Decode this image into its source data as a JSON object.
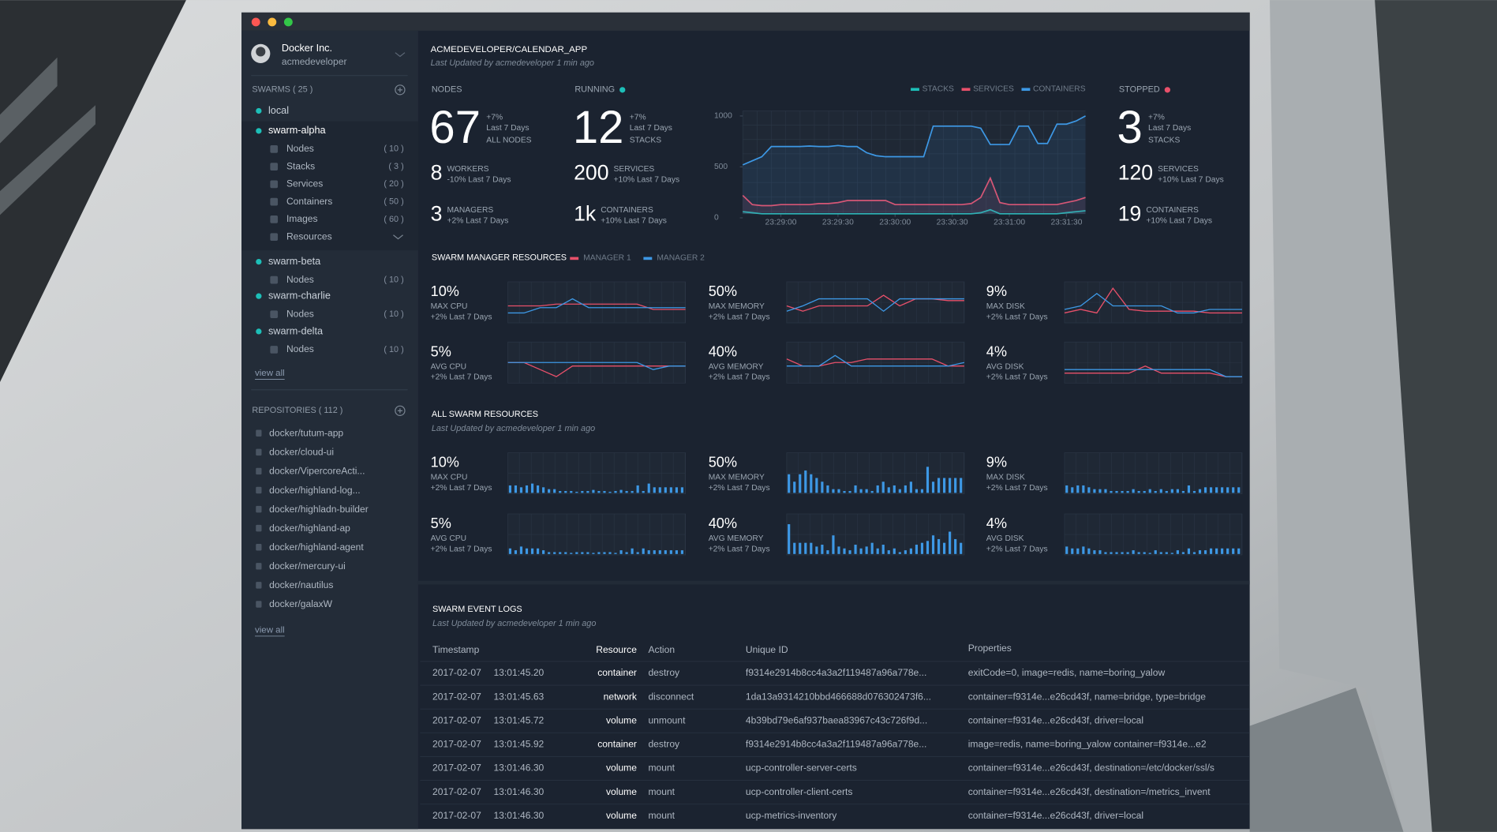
{
  "sidebar": {
    "org": "Docker Inc.",
    "user": "acmedeveloper",
    "swarms_title": "SWARMS ( 25 )",
    "swarms": [
      {
        "name": "local"
      },
      {
        "name": "swarm-alpha",
        "items": [
          {
            "label": "Nodes",
            "count": "( 10 )"
          },
          {
            "label": "Stacks",
            "count": "( 3 )"
          },
          {
            "label": "Services",
            "count": "( 20 )"
          },
          {
            "label": "Containers",
            "count": "( 50 )"
          },
          {
            "label": "Images",
            "count": "( 60 )"
          },
          {
            "label": "Resources"
          }
        ]
      },
      {
        "name": "swarm-beta",
        "items": [
          {
            "label": "Nodes",
            "count": "( 10 )"
          }
        ]
      },
      {
        "name": "swarm-charlie",
        "items": [
          {
            "label": "Nodes",
            "count": "( 10 )"
          }
        ]
      },
      {
        "name": "swarm-delta",
        "items": [
          {
            "label": "Nodes",
            "count": "( 10 )"
          }
        ]
      }
    ],
    "swarms_link": "view all",
    "repos_title": "REPOSITORIES  ( 112 )",
    "repos": [
      "docker/tutum-app",
      "docker/cloud-ui",
      "docker/VipercoreActi...",
      "docker/highland-log...",
      "docker/highladn-builder",
      "docker/highland-ap",
      "docker/highland-agent",
      "docker/mercury-ui",
      "docker/nautilus",
      "docker/galaxW"
    ],
    "repos_link": "view all"
  },
  "header": {
    "title": "ACMEDEVELOPER/CALENDAR_APP",
    "updated": "Last Updated by acmedeveloper 1 min ago"
  },
  "stats": [
    {
      "label": "NODES",
      "value": "67",
      "change": "+7%",
      "period": "Last 7 Days",
      "unit": "ALL NODES",
      "rows": [
        {
          "value": "8",
          "unit": "WORKERS",
          "change": "-10% Last 7 Days"
        },
        {
          "value": "3",
          "unit": "MANAGERS",
          "change": "+2% Last 7 Days"
        }
      ]
    },
    {
      "label": "RUNNING",
      "status_color": "#1dbfb8",
      "value": "12",
      "change": "+7%",
      "period": "Last 7 Days",
      "unit": "STACKS",
      "rows": [
        {
          "value": "200",
          "unit": "SERVICES",
          "change": "+10% Last 7 Days"
        },
        {
          "value": "1k",
          "unit": "CONTAINERS",
          "change": "+10% Last 7 Days"
        }
      ]
    },
    {
      "label": "STOPPED",
      "status_color": "#e8506a",
      "value": "3",
      "change": "+7%",
      "period": "Last 7 Days",
      "unit": "STACKS",
      "rows": [
        {
          "value": "120",
          "unit": "SERVICES",
          "change": "+10% Last 7 Days"
        },
        {
          "value": "19",
          "unit": "CONTAINERS",
          "change": "+10% Last 7 Days"
        }
      ]
    }
  ],
  "chart_data": {
    "type": "line",
    "xlim": [
      0,
      36
    ],
    "xticks": [
      {
        "value": 4,
        "label": "23:29:00"
      },
      {
        "value": 10,
        "label": "23:29:30"
      },
      {
        "value": 16,
        "label": "23:30:00"
      },
      {
        "value": 22,
        "label": "23:30:30"
      },
      {
        "value": 28,
        "label": "23:31:00"
      },
      {
        "value": 34,
        "label": "23:31:30"
      }
    ],
    "ylim": [
      0,
      1050
    ],
    "yticks": [
      0,
      500,
      1000
    ],
    "grid": true,
    "legend": "top-right",
    "series": [
      {
        "name": "STACKS",
        "color": "#1dbfb8",
        "values": [
          60,
          50,
          40,
          40,
          40,
          40,
          40,
          40,
          40,
          40,
          40,
          40,
          40,
          40,
          40,
          40,
          40,
          40,
          40,
          40,
          40,
          40,
          40,
          40,
          40,
          50,
          80,
          40,
          40,
          40,
          40,
          40,
          40,
          40,
          50,
          60,
          70
        ]
      },
      {
        "name": "SERVICES",
        "color": "#e8506a",
        "values": [
          220,
          130,
          120,
          120,
          130,
          130,
          130,
          130,
          140,
          140,
          150,
          170,
          170,
          170,
          170,
          170,
          130,
          130,
          130,
          130,
          130,
          130,
          130,
          130,
          140,
          200,
          390,
          150,
          130,
          130,
          130,
          130,
          130,
          130,
          150,
          170,
          200
        ]
      },
      {
        "name": "CONTAINERS",
        "color": "#3d98e5",
        "values": [
          520,
          560,
          600,
          700,
          700,
          700,
          700,
          705,
          700,
          700,
          710,
          700,
          700,
          640,
          610,
          600,
          600,
          600,
          600,
          600,
          900,
          900,
          900,
          900,
          900,
          880,
          720,
          720,
          720,
          900,
          900,
          730,
          730,
          920,
          920,
          950,
          1000
        ]
      }
    ]
  },
  "manager_resources": {
    "title": "SWARM MANAGER RESOURCES",
    "type": "line",
    "ylim": [
      0,
      10
    ],
    "legend": [
      {
        "name": "MANAGER 1",
        "color": "#e8506a"
      },
      {
        "name": "MANAGER 2",
        "color": "#3d98e5"
      }
    ],
    "blocks": [
      {
        "value": "10%",
        "label": "MAX CPU",
        "change": "+2% Last 7 Days",
        "series": [
          [
            4,
            4,
            4,
            4.5,
            4.5,
            4.5,
            4.5,
            4.5,
            4.5,
            3,
            3,
            3
          ],
          [
            2,
            2,
            3.5,
            3.5,
            6,
            3.5,
            3.5,
            3.5,
            3.5,
            3.5,
            3.5,
            3.5
          ]
        ]
      },
      {
        "value": "50%",
        "label": "MAX MEMORY",
        "change": "+2% Last 7 Days",
        "series": [
          [
            4,
            2.5,
            4,
            4,
            4,
            4,
            7,
            4,
            6,
            6,
            5.5,
            5.5
          ],
          [
            2.5,
            4,
            6,
            6,
            6,
            6,
            2.5,
            6,
            6,
            6,
            6,
            6
          ]
        ]
      },
      {
        "value": "9%",
        "label": "MAX DISK",
        "change": "+2% Last 7 Days",
        "series": [
          [
            2,
            3,
            2,
            9,
            3,
            2.5,
            2.5,
            2.5,
            2.5,
            2,
            2,
            2
          ],
          [
            3,
            4,
            7.5,
            4,
            4,
            4,
            4,
            2,
            2,
            3,
            3,
            3
          ]
        ]
      },
      {
        "value": "5%",
        "label": "AVG CPU",
        "change": "+2% Last 7 Days",
        "series": [
          [
            5,
            5,
            3,
            1,
            4,
            4,
            4,
            4,
            4,
            4,
            4,
            4
          ],
          [
            5,
            5,
            5,
            5,
            5,
            5,
            5,
            5,
            5,
            3,
            4,
            4
          ]
        ]
      },
      {
        "value": "40%",
        "label": "AVG MEMORY",
        "change": "+2% Last 7 Days",
        "series": [
          [
            6,
            4,
            4,
            5,
            5,
            6,
            6,
            6,
            6,
            6,
            4,
            4
          ],
          [
            4,
            4,
            4,
            7,
            4,
            4,
            4,
            4,
            4,
            4,
            4,
            5
          ]
        ]
      },
      {
        "value": "4%",
        "label": "AVG DISK",
        "change": "+2% Last 7 Days",
        "series": [
          [
            2,
            2,
            2,
            2,
            2,
            4,
            2,
            2,
            2,
            2,
            1,
            1
          ],
          [
            3,
            3,
            3,
            3,
            3,
            3,
            3,
            3,
            3,
            3,
            1,
            1
          ]
        ]
      }
    ]
  },
  "swarm_resources": {
    "title": "ALL SWARM RESOURCES",
    "updated": "Last Updated by acmedeveloper 1 min ago",
    "type": "bar",
    "color": "#3d98e5",
    "ylim": [
      0,
      10
    ],
    "blocks": [
      {
        "value": "10%",
        "label": "MAX CPU",
        "change": "+2% Last 7 Days",
        "values": [
          2,
          2,
          1.5,
          2,
          2.5,
          2,
          1.5,
          1,
          1,
          0.5,
          0.5,
          0.5,
          0.3,
          0.5,
          0.5,
          0.8,
          0.5,
          0.5,
          0.3,
          0.5,
          0.8,
          0.5,
          0.5,
          2,
          0.5,
          2.5,
          1.5,
          1.5,
          1.5,
          1.5,
          1.5,
          1.5
        ]
      },
      {
        "value": "50%",
        "label": "MAX MEMORY",
        "change": "+2% Last 7 Days",
        "values": [
          5,
          3,
          5,
          6,
          5,
          4,
          3,
          2,
          1,
          1,
          0.5,
          0.5,
          2,
          1,
          1,
          0.5,
          2,
          3,
          1.5,
          2,
          1,
          2,
          3,
          1,
          1,
          7,
          3,
          4,
          4,
          4,
          4,
          4
        ]
      },
      {
        "value": "9%",
        "label": "MAX DISK",
        "change": "+2% Last 7 Days",
        "values": [
          2,
          1.5,
          2,
          2,
          1.5,
          1,
          1,
          1,
          0.5,
          0.5,
          0.5,
          0.5,
          1,
          0.5,
          0.5,
          1,
          0.5,
          1,
          0.5,
          1,
          1,
          0.5,
          2,
          0.5,
          1,
          1.5,
          1.5,
          1.5,
          1.5,
          1.5,
          1.5,
          1.5
        ]
      },
      {
        "value": "5%",
        "label": "AVG CPU",
        "change": "+2% Last 7 Days",
        "values": [
          1.5,
          1,
          2,
          1.5,
          1.5,
          1.5,
          1,
          0.5,
          0.5,
          0.5,
          0.5,
          0.3,
          0.5,
          0.5,
          0.5,
          0.3,
          0.5,
          0.5,
          0.5,
          0.3,
          1,
          0.5,
          1.5,
          0.5,
          1.5,
          1,
          1,
          1,
          1,
          1,
          1,
          1
        ]
      },
      {
        "value": "40%",
        "label": "AVG MEMORY",
        "change": "+2% Last 7 Days",
        "values": [
          8,
          3,
          3,
          3,
          3,
          2,
          2.5,
          1,
          5,
          2,
          1.5,
          1,
          2.5,
          1.5,
          2,
          3,
          1.5,
          2.5,
          1,
          1.5,
          0.5,
          1,
          1.5,
          2.5,
          3,
          3.5,
          5,
          4,
          3,
          6,
          4,
          3
        ]
      },
      {
        "value": "4%",
        "label": "AVG DISK",
        "change": "+2% Last 7 Days",
        "values": [
          2,
          1.5,
          1.5,
          2,
          1.5,
          1,
          1,
          0.5,
          0.5,
          0.5,
          0.5,
          0.5,
          1,
          0.5,
          0.5,
          0.3,
          1,
          0.5,
          0.5,
          0.3,
          1,
          0.5,
          1.5,
          0.5,
          1,
          1,
          1.5,
          1.5,
          1.5,
          1.5,
          1.5,
          1.5
        ]
      }
    ]
  },
  "event_logs": {
    "title": "SWARM EVENT LOGS",
    "updated": "Last Updated by acmedeveloper 1 min ago",
    "columns": [
      "Timestamp",
      "Resource",
      "Action",
      "Unique ID",
      "Properties"
    ],
    "rows": [
      [
        "2017-02-07",
        "13:01:45.20",
        "container",
        "destroy",
        "f9314e2914b8cc4a3a2f119487a96a778e...",
        "exitCode=0, image=redis, name=boring_yalow"
      ],
      [
        "2017-02-07",
        "13:01:45.63",
        "network",
        "disconnect",
        "1da13a9314210bbd466688d076302473f6...",
        "container=f9314e...e26cd43f, name=bridge, type=bridge"
      ],
      [
        "2017-02-07",
        "13:01:45.72",
        "volume",
        "unmount",
        "4b39bd79e6af937baea83967c43c726f9d...",
        "container=f9314e...e26cd43f, driver=local"
      ],
      [
        "2017-02-07",
        "13:01:45.92",
        "container",
        "destroy",
        "f9314e2914b8cc4a3a2f119487a96a778e...",
        "image=redis, name=boring_yalow container=f9314e...e2"
      ],
      [
        "2017-02-07",
        "13:01:46.30",
        "volume",
        "mount",
        "ucp-controller-server-certs",
        "container=f9314e...e26cd43f, destination=/etc/docker/ssl/s"
      ],
      [
        "2017-02-07",
        "13:01:46.30",
        "volume",
        "mount",
        "ucp-controller-client-certs",
        "container=f9314e...e26cd43f, destination=/metrics_invent"
      ],
      [
        "2017-02-07",
        "13:01:46.30",
        "volume",
        "mount",
        "ucp-metrics-inventory",
        "container=f9314e...e26cd43f, driver=local"
      ]
    ]
  }
}
